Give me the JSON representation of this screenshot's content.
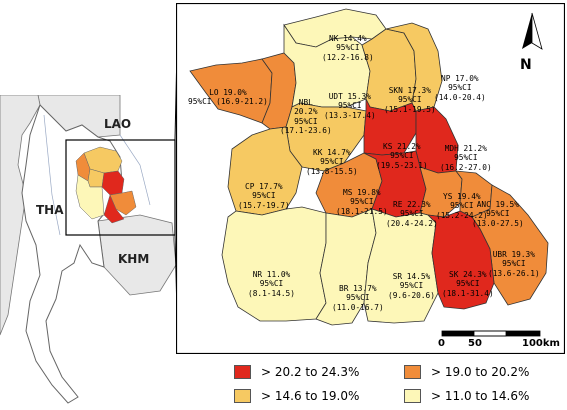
{
  "overview": {
    "countries": {
      "tha": "THA",
      "lao": "LAO",
      "khm": "KHM"
    }
  },
  "regions": [
    {
      "code": "NK",
      "name_line": "NK 14.4%",
      "ci_label": "95%CI",
      "ci_range": "(12.2-16.8)",
      "estimate": 14.4,
      "class": "c1"
    },
    {
      "code": "LO",
      "name_line": "LO 19.0%",
      "ci_label": "95%CI (16.9-21.2)",
      "ci_range": "",
      "estimate": 19.0,
      "class": "c3"
    },
    {
      "code": "NBL",
      "name_line": "NBL",
      "ci_label": "20.2%",
      "ci_range": "95%CI",
      "extra": "(17.1-23.6)",
      "estimate": 20.2,
      "class": "c3"
    },
    {
      "code": "UDT",
      "name_line": "UDT 15.3%",
      "ci_label": "95%CI",
      "ci_range": "(13.3-17.4)",
      "estimate": 15.3,
      "class": "c2"
    },
    {
      "code": "SKN",
      "name_line": "SKN 17.3%",
      "ci_label": "95%CI",
      "ci_range": "(15.1-19.5)",
      "estimate": 17.3,
      "class": "c2"
    },
    {
      "code": "NP",
      "name_line": "NP 17.0%",
      "ci_label": "95%CI",
      "ci_range": "(14.0-20.4)",
      "estimate": 17.0,
      "class": "c2"
    },
    {
      "code": "KK",
      "name_line": "KK 14.7%",
      "ci_label": "95%CI",
      "ci_range": "(13.8-15.5)",
      "estimate": 14.7,
      "class": "c2"
    },
    {
      "code": "KS",
      "name_line": "KS 21.2%",
      "ci_label": "95%CI",
      "ci_range": "(19.5-23.1)",
      "estimate": 21.2,
      "class": "c4"
    },
    {
      "code": "MDH",
      "name_line": "MDH 21.2%",
      "ci_label": "95%CI",
      "ci_range": "(16.2-27.0)",
      "estimate": 21.2,
      "class": "c4"
    },
    {
      "code": "CP",
      "name_line": "CP 17.7%",
      "ci_label": "95%CI",
      "ci_range": "(15.7-19.7)",
      "estimate": 17.7,
      "class": "c2"
    },
    {
      "code": "MS",
      "name_line": "MS 19.8%",
      "ci_label": "95%CI",
      "ci_range": "(18.1-21.5)",
      "estimate": 19.8,
      "class": "c3"
    },
    {
      "code": "RE",
      "name_line": "RE 22.3%",
      "ci_label": "95%CI",
      "ci_range": "(20.4-24.2)",
      "estimate": 22.3,
      "class": "c4"
    },
    {
      "code": "YS",
      "name_line": "YS 19.4%",
      "ci_label": "95%CI",
      "ci_range": "(15.2-24.2)",
      "estimate": 19.4,
      "class": "c3"
    },
    {
      "code": "ANC",
      "name_line": "ANC 19.5%",
      "ci_label": "95%CI",
      "ci_range": "(13.0-27.5)",
      "estimate": 19.5,
      "class": "c3"
    },
    {
      "code": "UBR",
      "name_line": "UBR 19.3%",
      "ci_label": "95%CI",
      "ci_range": "(13.6-26.1)",
      "estimate": 19.3,
      "class": "c3"
    },
    {
      "code": "NR",
      "name_line": "NR 11.0%",
      "ci_label": "95%CI",
      "ci_range": "(8.1-14.5)",
      "estimate": 11.0,
      "class": "c1"
    },
    {
      "code": "BR",
      "name_line": "BR 13.7%",
      "ci_label": "95%CI",
      "ci_range": "(11.0-16.7)",
      "estimate": 13.7,
      "class": "c1"
    },
    {
      "code": "SR",
      "name_line": "SR 14.5%",
      "ci_label": "95%CI",
      "ci_range": "(9.6-20.6)",
      "estimate": 14.5,
      "class": "c1"
    },
    {
      "code": "SK",
      "name_line": "SK 24.3%",
      "ci_label": "95%CI",
      "ci_range": "(18.1-31.4)",
      "estimate": 24.3,
      "class": "c4"
    }
  ],
  "legend": {
    "items": [
      {
        "label": "> 20.2 to 24.3%",
        "color": "#e0281d"
      },
      {
        "label": "> 19.0 to 20.2%",
        "color": "#f08c3a"
      },
      {
        "label": "> 14.6 to 19.0%",
        "color": "#f6c962"
      },
      {
        "label": "> 11.0 to 14.6%",
        "color": "#fdf7b8"
      }
    ]
  },
  "scale_bar": {
    "ticks": [
      "0",
      "50",
      "100km"
    ]
  },
  "north_arrow": {
    "label": "N"
  },
  "colors": {
    "c1": "#fdf7b8",
    "c2": "#f6c962",
    "c3": "#f08c3a",
    "c4": "#e0281d",
    "outline": "#333333",
    "frame": "#000000",
    "sea": "#ffffff",
    "inset_land": "#e8e8e8",
    "inset_border": "#777777"
  }
}
